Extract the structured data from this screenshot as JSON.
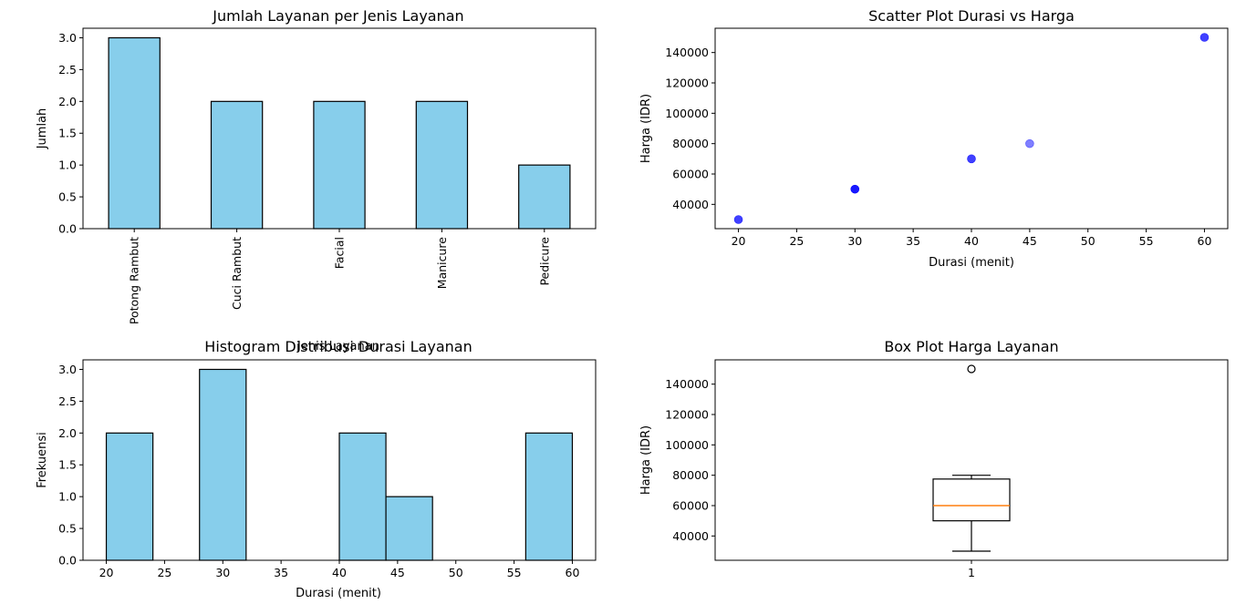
{
  "chart_data": [
    {
      "type": "bar",
      "title": "Jumlah Layanan per Jenis Layanan",
      "xlabel": "",
      "ylabel": "Jumlah",
      "categories": [
        "Potong Rambut",
        "Cuci Rambut",
        "Facial",
        "Manicure",
        "Pedicure"
      ],
      "values": [
        3,
        2,
        2,
        2,
        1
      ],
      "ylim": [
        0,
        3.15
      ],
      "yticks": [
        "0.0",
        "0.5",
        "1.0",
        "1.5",
        "2.0",
        "2.5",
        "3.0"
      ],
      "bar_color": "#87ceeb",
      "edge_color": "#000000"
    },
    {
      "type": "scatter",
      "title": "Scatter Plot Durasi vs Harga",
      "xlabel": "Durasi (menit)",
      "ylabel": "Harga (IDR)",
      "x": [
        20,
        30,
        40,
        45,
        60
      ],
      "y": [
        30000,
        50000,
        70000,
        80000,
        150000
      ],
      "alpha": [
        0.75,
        0.9,
        0.75,
        0.5,
        0.75
      ],
      "xlim": [
        18,
        62
      ],
      "ylim": [
        24000,
        156000
      ],
      "xticks": [
        "20",
        "25",
        "30",
        "35",
        "40",
        "45",
        "50",
        "55",
        "60"
      ],
      "yticks": [
        "40000",
        "60000",
        "80000",
        "100000",
        "120000",
        "140000"
      ],
      "color": "#0000ff"
    },
    {
      "type": "bar",
      "subtype": "histogram",
      "title": "Histogram Distribusi Durasi Layanan",
      "overlap_label": "Jenis Layanan",
      "xlabel": "Durasi (menit)",
      "ylabel": "Frekuensi",
      "bins": [
        {
          "x0": 20,
          "x1": 24,
          "count": 2
        },
        {
          "x0": 24,
          "x1": 28,
          "count": 0
        },
        {
          "x0": 28,
          "x1": 32,
          "count": 3
        },
        {
          "x0": 32,
          "x1": 36,
          "count": 0
        },
        {
          "x0": 36,
          "x1": 40,
          "count": 0
        },
        {
          "x0": 40,
          "x1": 44,
          "count": 2
        },
        {
          "x0": 44,
          "x1": 48,
          "count": 1
        },
        {
          "x0": 48,
          "x1": 52,
          "count": 0
        },
        {
          "x0": 52,
          "x1": 56,
          "count": 0
        },
        {
          "x0": 56,
          "x1": 60,
          "count": 2
        }
      ],
      "xlim": [
        18,
        62
      ],
      "ylim": [
        0,
        3.15
      ],
      "xticks": [
        "20",
        "25",
        "30",
        "35",
        "40",
        "45",
        "50",
        "55",
        "60"
      ],
      "yticks": [
        "0.0",
        "0.5",
        "1.0",
        "1.5",
        "2.0",
        "2.5",
        "3.0"
      ],
      "bar_color": "#87ceeb",
      "edge_color": "#000000"
    },
    {
      "type": "box",
      "title": "Box Plot Harga Layanan",
      "xlabel": "",
      "ylabel": "Harga (IDR)",
      "category": "1",
      "whisker_low": 30000,
      "q1": 50000,
      "median": 60000,
      "q3": 77500,
      "whisker_high": 80000,
      "outliers": [
        150000
      ],
      "ylim": [
        24000,
        156000
      ],
      "yticks": [
        "40000",
        "60000",
        "80000",
        "100000",
        "120000",
        "140000"
      ],
      "median_color": "#ff7f0e"
    }
  ]
}
